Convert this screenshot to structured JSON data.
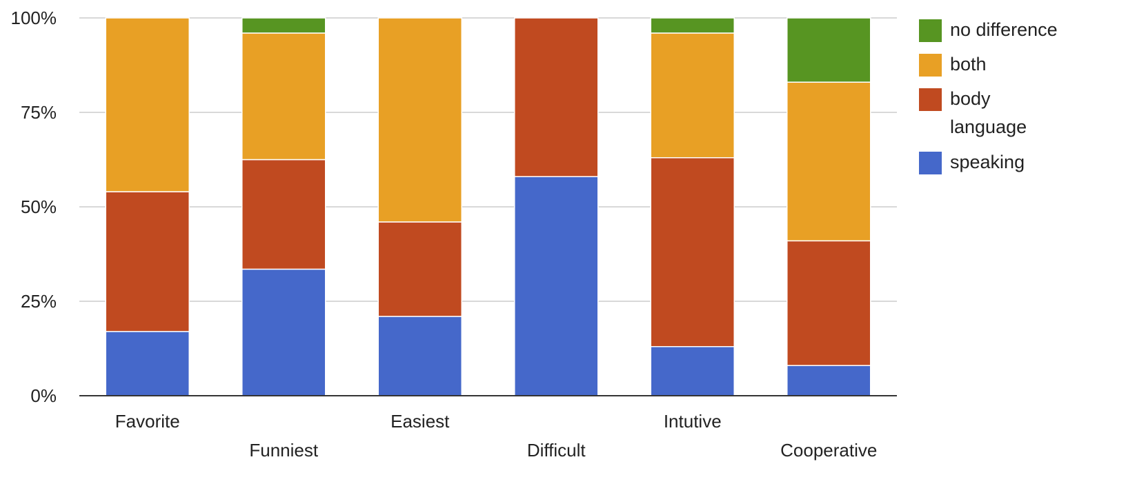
{
  "chart_data": {
    "type": "bar",
    "stacked": "percent",
    "categories": [
      "Favorite",
      "Funniest",
      "Easiest",
      "Difficult",
      "Intutive",
      "Cooperative"
    ],
    "series": [
      {
        "name": "speaking",
        "color": "#4568ca",
        "values": [
          17,
          33.5,
          21,
          58,
          13,
          8
        ]
      },
      {
        "name": "body language",
        "color": "#c04a20",
        "values": [
          37,
          29,
          25,
          42,
          50,
          33
        ]
      },
      {
        "name": "both",
        "color": "#e8a025",
        "values": [
          46,
          33.5,
          54,
          0,
          33,
          42
        ]
      },
      {
        "name": "no difference",
        "color": "#579522",
        "values": [
          0,
          4,
          0,
          0,
          4,
          17
        ]
      }
    ],
    "y_ticks": [
      "0%",
      "25%",
      "50%",
      "75%",
      "100%"
    ],
    "ylim": [
      0,
      100
    ],
    "grid": true,
    "legend": {
      "position": "right",
      "entries": [
        {
          "series": "no difference",
          "lines": [
            "no difference"
          ]
        },
        {
          "series": "both",
          "lines": [
            "both"
          ]
        },
        {
          "series": "body language",
          "lines": [
            "body",
            "language"
          ]
        },
        {
          "series": "speaking",
          "lines": [
            "speaking"
          ]
        }
      ]
    }
  }
}
